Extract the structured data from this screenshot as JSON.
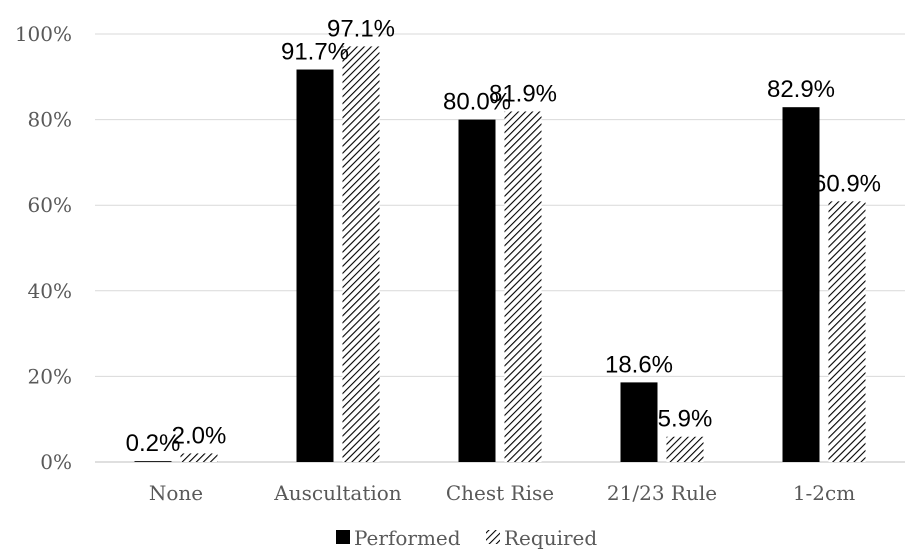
{
  "chart_data": {
    "type": "bar",
    "categories": [
      "None",
      "Auscultation",
      "Chest Rise",
      "21/23 Rule",
      "1-2cm"
    ],
    "series": [
      {
        "name": "Performed",
        "values": [
          0.2,
          91.7,
          80.0,
          18.6,
          82.9
        ],
        "labels": [
          "0.2%",
          "91.7%",
          "80.0%",
          "18.6%",
          "82.9%"
        ],
        "color": "#000000",
        "pattern": "solid"
      },
      {
        "name": "Required",
        "values": [
          2.0,
          97.1,
          81.9,
          5.9,
          60.9
        ],
        "labels": [
          "2.0%",
          "97.1%",
          "81.9%",
          "5.9%",
          "60.9%"
        ],
        "color": "#000000",
        "pattern": "diagonal-hatch"
      }
    ],
    "y_ticks": [
      "0%",
      "20%",
      "40%",
      "60%",
      "80%",
      "100%"
    ],
    "ylim": [
      0,
      100
    ],
    "grid": true,
    "legend_position": "bottom"
  }
}
